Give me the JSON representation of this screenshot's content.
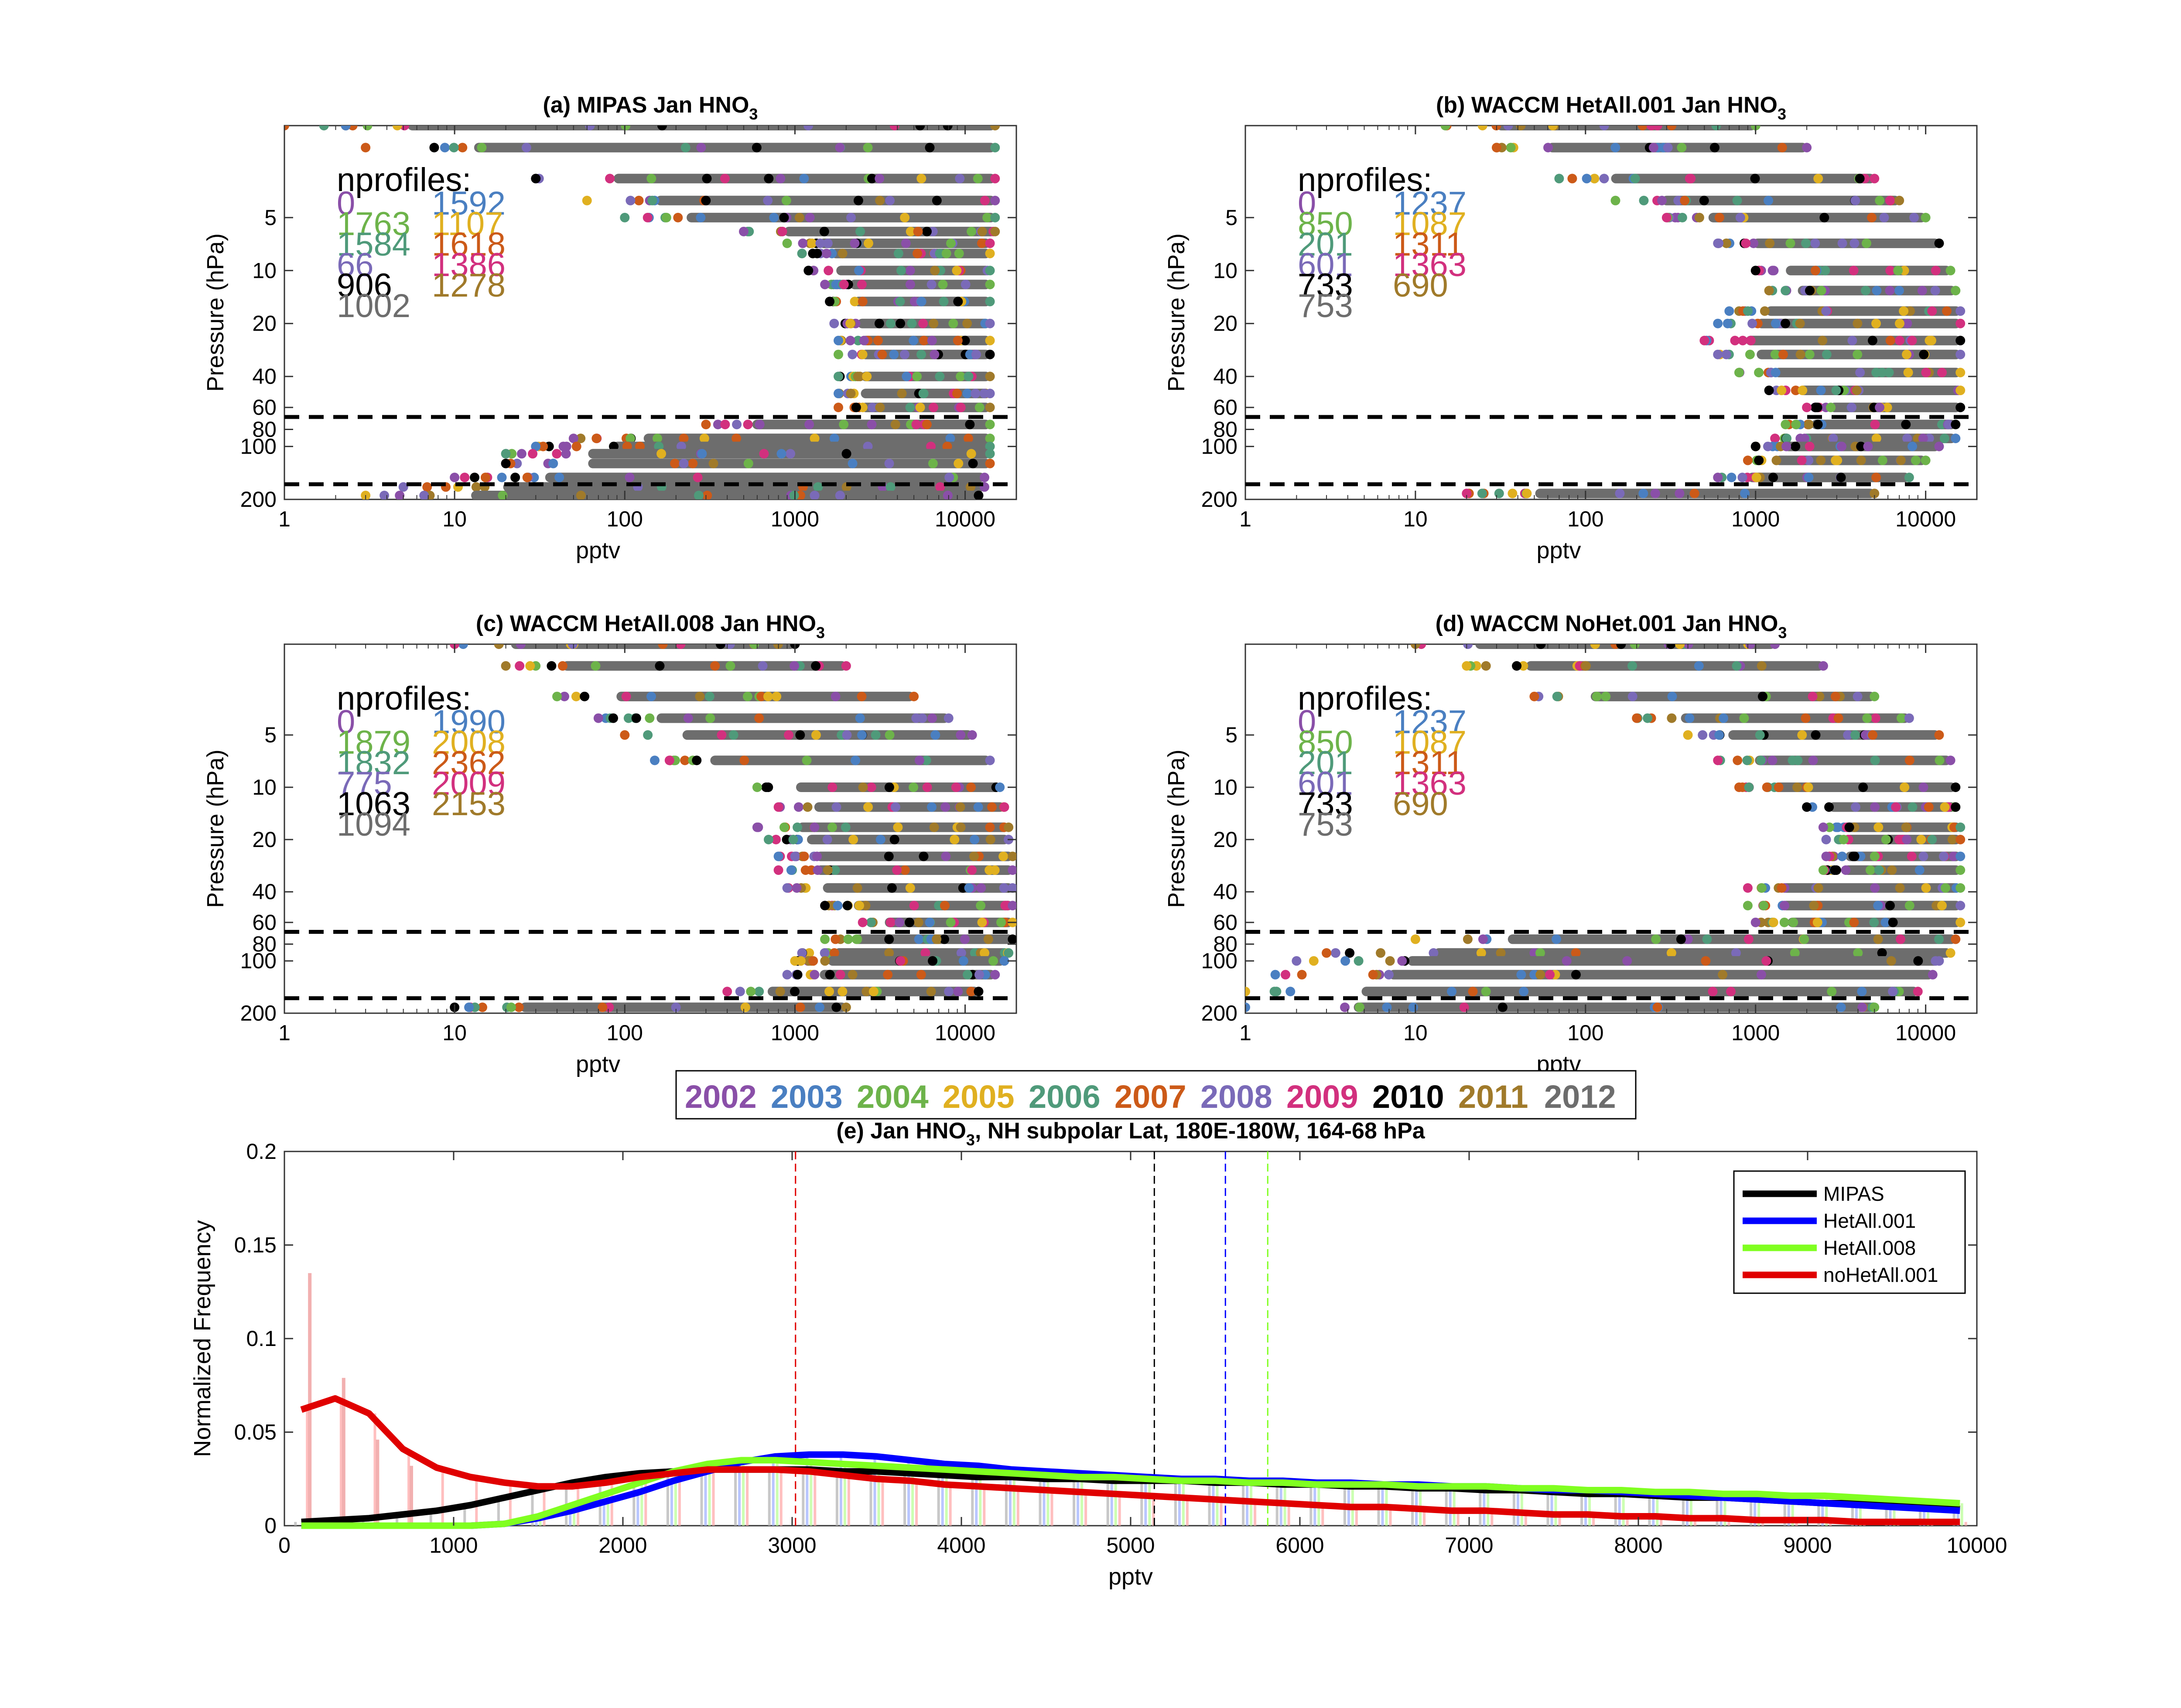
{
  "colors": {
    "2002": "#8a4fa8",
    "2003": "#4a7fc1",
    "2004": "#6db34a",
    "2005": "#e0b020",
    "2006": "#4f9a7a",
    "2007": "#cc5a18",
    "2008": "#7a6ab8",
    "2009": "#d2307e",
    "2010": "#000000",
    "2011": "#a07a2a",
    "2012": "#6d6d6d",
    "MIPAS": "#000000",
    "HetAll.001": "#0000ff",
    "HetAll.008": "#80ff20",
    "noHetAll.001": "#e00000"
  },
  "panels": [
    {
      "id": "a",
      "title_main": "(a) MIPAS Jan HNO",
      "title_sub": "3",
      "nprofiles_label": "nprofiles:",
      "counts": [
        "0",
        "1592",
        "1763",
        "1107",
        "1584",
        "1618",
        "66",
        "1386",
        "906",
        "1278",
        "1002"
      ]
    },
    {
      "id": "b",
      "title_main": "(b) WACCM HetAll.001 Jan HNO",
      "title_sub": "3",
      "nprofiles_label": "nprofiles:",
      "counts": [
        "0",
        "1237",
        "850",
        "1087",
        "201",
        "1311",
        "601",
        "1363",
        "733",
        "690",
        "753"
      ]
    },
    {
      "id": "c",
      "title_main": "(c) WACCM HetAll.008 Jan HNO",
      "title_sub": "3",
      "nprofiles_label": "nprofiles:",
      "counts": [
        "0",
        "1990",
        "1879",
        "2008",
        "1832",
        "2362",
        "775",
        "2009",
        "1063",
        "2153",
        "1094"
      ]
    },
    {
      "id": "d",
      "title_main": "(d) WACCM NoHet.001 Jan HNO",
      "title_sub": "3",
      "nprofiles_label": "nprofiles:",
      "counts": [
        "0",
        "1237",
        "850",
        "1087",
        "201",
        "1311",
        "601",
        "1363",
        "733",
        "690",
        "753"
      ]
    }
  ],
  "profile_axes": {
    "ylabel": "Pressure (hPa)",
    "xlabel": "pptv",
    "xscale": "log",
    "yscale": "log",
    "xlim": [
      1,
      20000
    ],
    "ylim": [
      1.5,
      200
    ],
    "xticks": [
      "1",
      "10",
      "100",
      "1000",
      "10000"
    ],
    "yticks": [
      "5",
      "10",
      "20",
      "40",
      "60",
      "80",
      "100",
      "200"
    ],
    "dashed_pressure_levels": [
      68,
      164
    ]
  },
  "year_legend": [
    "2002",
    "2003",
    "2004",
    "2005",
    "2006",
    "2007",
    "2008",
    "2009",
    "2010",
    "2011",
    "2012"
  ],
  "chart_data": [
    {
      "type": "scatter",
      "panel": "a",
      "description_ranges": [
        {
          "p": 1.5,
          "min": 1,
          "max": 15000
        },
        {
          "p": 2,
          "min": 3,
          "max": 15000
        },
        {
          "p": 3,
          "min": 30,
          "max": 15000
        },
        {
          "p": 4,
          "min": 60,
          "max": 15000
        },
        {
          "p": 5,
          "min": 100,
          "max": 15000
        },
        {
          "p": 6,
          "min": 500,
          "max": 15000
        },
        {
          "p": 7,
          "min": 900,
          "max": 14000
        },
        {
          "p": 8,
          "min": 1100,
          "max": 14000
        },
        {
          "p": 10,
          "min": 1200,
          "max": 14000
        },
        {
          "p": 12,
          "min": 1500,
          "max": 14000
        },
        {
          "p": 15,
          "min": 1600,
          "max": 14000
        },
        {
          "p": 20,
          "min": 1700,
          "max": 14000
        },
        {
          "p": 25,
          "min": 1800,
          "max": 14000
        },
        {
          "p": 30,
          "min": 1800,
          "max": 14000
        },
        {
          "p": 40,
          "min": 1800,
          "max": 14000
        },
        {
          "p": 50,
          "min": 1800,
          "max": 14000
        },
        {
          "p": 60,
          "min": 1800,
          "max": 14000
        },
        {
          "p": 75,
          "min": 300,
          "max": 14000
        },
        {
          "p": 90,
          "min": 50,
          "max": 14000
        },
        {
          "p": 100,
          "min": 30,
          "max": 14000
        },
        {
          "p": 110,
          "min": 20,
          "max": 14000
        },
        {
          "p": 125,
          "min": 20,
          "max": 14000
        },
        {
          "p": 150,
          "min": 10,
          "max": 13000
        },
        {
          "p": 170,
          "min": 5,
          "max": 13000
        },
        {
          "p": 190,
          "min": 3,
          "max": 12000
        }
      ]
    },
    {
      "type": "scatter",
      "panel": "b",
      "description_ranges": [
        {
          "p": 1.5,
          "min": 15,
          "max": 1000
        },
        {
          "p": 2,
          "min": 30,
          "max": 2000
        },
        {
          "p": 3,
          "min": 70,
          "max": 5000
        },
        {
          "p": 4,
          "min": 150,
          "max": 7000
        },
        {
          "p": 5,
          "min": 300,
          "max": 10000
        },
        {
          "p": 7,
          "min": 600,
          "max": 12000
        },
        {
          "p": 10,
          "min": 1000,
          "max": 14000
        },
        {
          "p": 13,
          "min": 1200,
          "max": 15000
        },
        {
          "p": 17,
          "min": 700,
          "max": 16000
        },
        {
          "p": 20,
          "min": 600,
          "max": 16000
        },
        {
          "p": 25,
          "min": 500,
          "max": 16000
        },
        {
          "p": 30,
          "min": 600,
          "max": 16000
        },
        {
          "p": 38,
          "min": 800,
          "max": 16000
        },
        {
          "p": 48,
          "min": 1200,
          "max": 16000
        },
        {
          "p": 60,
          "min": 2000,
          "max": 16000
        },
        {
          "p": 75,
          "min": 1500,
          "max": 15000
        },
        {
          "p": 90,
          "min": 1300,
          "max": 15000
        },
        {
          "p": 100,
          "min": 1000,
          "max": 12000
        },
        {
          "p": 120,
          "min": 900,
          "max": 10000
        },
        {
          "p": 150,
          "min": 600,
          "max": 8000
        },
        {
          "p": 185,
          "min": 20,
          "max": 5000
        }
      ]
    },
    {
      "type": "scatter",
      "panel": "c",
      "description_ranges": [
        {
          "p": 1.5,
          "min": 10,
          "max": 1000
        },
        {
          "p": 2,
          "min": 20,
          "max": 2000
        },
        {
          "p": 3,
          "min": 40,
          "max": 5000
        },
        {
          "p": 4,
          "min": 70,
          "max": 8000
        },
        {
          "p": 5,
          "min": 100,
          "max": 11000
        },
        {
          "p": 7,
          "min": 150,
          "max": 14000
        },
        {
          "p": 10,
          "min": 600,
          "max": 16000
        },
        {
          "p": 13,
          "min": 800,
          "max": 17000
        },
        {
          "p": 17,
          "min": 600,
          "max": 18000
        },
        {
          "p": 20,
          "min": 700,
          "max": 18000
        },
        {
          "p": 25,
          "min": 800,
          "max": 19000
        },
        {
          "p": 30,
          "min": 800,
          "max": 19000
        },
        {
          "p": 38,
          "min": 900,
          "max": 19000
        },
        {
          "p": 48,
          "min": 1500,
          "max": 19000
        },
        {
          "p": 60,
          "min": 2500,
          "max": 19000
        },
        {
          "p": 75,
          "min": 1500,
          "max": 19000
        },
        {
          "p": 90,
          "min": 1100,
          "max": 18000
        },
        {
          "p": 100,
          "min": 1000,
          "max": 17000
        },
        {
          "p": 120,
          "min": 900,
          "max": 15000
        },
        {
          "p": 150,
          "min": 400,
          "max": 12000
        },
        {
          "p": 185,
          "min": 10,
          "max": 2000
        }
      ]
    },
    {
      "type": "scatter",
      "panel": "d",
      "description_ranges": [
        {
          "p": 1.5,
          "min": 10,
          "max": 1300
        },
        {
          "p": 2,
          "min": 20,
          "max": 2500
        },
        {
          "p": 3,
          "min": 50,
          "max": 5000
        },
        {
          "p": 4,
          "min": 200,
          "max": 8000
        },
        {
          "p": 5,
          "min": 400,
          "max": 12000
        },
        {
          "p": 7,
          "min": 600,
          "max": 14000
        },
        {
          "p": 10,
          "min": 800,
          "max": 15000
        },
        {
          "p": 13,
          "min": 2000,
          "max": 15000
        },
        {
          "p": 17,
          "min": 2500,
          "max": 16000
        },
        {
          "p": 20,
          "min": 2600,
          "max": 16000
        },
        {
          "p": 25,
          "min": 2600,
          "max": 16000
        },
        {
          "p": 30,
          "min": 2500,
          "max": 16000
        },
        {
          "p": 38,
          "min": 900,
          "max": 16000
        },
        {
          "p": 48,
          "min": 900,
          "max": 16000
        },
        {
          "p": 60,
          "min": 1000,
          "max": 16000
        },
        {
          "p": 75,
          "min": 10,
          "max": 15000
        },
        {
          "p": 90,
          "min": 3,
          "max": 14000
        },
        {
          "p": 100,
          "min": 2,
          "max": 12000
        },
        {
          "p": 120,
          "min": 1.5,
          "max": 11000
        },
        {
          "p": 150,
          "min": 1,
          "max": 9000
        },
        {
          "p": 185,
          "min": 1,
          "max": 5000
        }
      ]
    },
    {
      "type": "line",
      "panel": "e",
      "title": "(e) Jan HNO3, NH subpolar Lat, 180E-180W, 164-68 hPa",
      "title_main": "(e) Jan HNO",
      "title_sub": "3",
      "title_rest": ", NH subpolar Lat, 180E-180W, 164-68 hPa",
      "xlabel": "pptv",
      "ylabel": "Normalized Frequency",
      "xlim": [
        0,
        10000
      ],
      "ylim": [
        0,
        0.2
      ],
      "xticks": [
        "0",
        "1000",
        "2000",
        "3000",
        "4000",
        "5000",
        "6000",
        "7000",
        "8000",
        "9000",
        "10000"
      ],
      "yticks": [
        "0",
        "0.05",
        "0.1",
        "0.15",
        "0.2"
      ],
      "x": [
        100,
        300,
        500,
        700,
        900,
        1100,
        1300,
        1500,
        1700,
        1900,
        2100,
        2300,
        2500,
        2700,
        2900,
        3100,
        3300,
        3500,
        3700,
        3900,
        4100,
        4300,
        4500,
        4700,
        4900,
        5100,
        5300,
        5500,
        5700,
        5900,
        6100,
        6300,
        6500,
        6700,
        6900,
        7100,
        7300,
        7500,
        7700,
        7900,
        8100,
        8300,
        8500,
        8700,
        8900,
        9100,
        9300,
        9500,
        9700,
        9900
      ],
      "series": [
        {
          "name": "MIPAS",
          "values": [
            0.002,
            0.003,
            0.004,
            0.006,
            0.008,
            0.011,
            0.015,
            0.019,
            0.023,
            0.026,
            0.028,
            0.029,
            0.03,
            0.03,
            0.03,
            0.03,
            0.029,
            0.029,
            0.028,
            0.027,
            0.026,
            0.026,
            0.025,
            0.025,
            0.024,
            0.024,
            0.024,
            0.023,
            0.023,
            0.022,
            0.022,
            0.021,
            0.021,
            0.02,
            0.02,
            0.019,
            0.019,
            0.018,
            0.017,
            0.017,
            0.016,
            0.015,
            0.015,
            0.014,
            0.013,
            0.012,
            0.012,
            0.011,
            0.01,
            0.009
          ]
        },
        {
          "name": "HetAll.001",
          "values": [
            0,
            0,
            0,
            0,
            0,
            0,
            0.001,
            0.004,
            0.008,
            0.013,
            0.018,
            0.024,
            0.029,
            0.034,
            0.037,
            0.038,
            0.038,
            0.037,
            0.035,
            0.033,
            0.032,
            0.03,
            0.029,
            0.028,
            0.027,
            0.026,
            0.025,
            0.025,
            0.024,
            0.024,
            0.023,
            0.023,
            0.022,
            0.022,
            0.021,
            0.021,
            0.02,
            0.019,
            0.019,
            0.018,
            0.017,
            0.016,
            0.015,
            0.014,
            0.013,
            0.012,
            0.011,
            0.01,
            0.009,
            0.008
          ]
        },
        {
          "name": "HetAll.008",
          "values": [
            0,
            0,
            0,
            0,
            0,
            0,
            0.001,
            0.005,
            0.011,
            0.017,
            0.023,
            0.029,
            0.033,
            0.035,
            0.035,
            0.034,
            0.033,
            0.032,
            0.031,
            0.03,
            0.029,
            0.028,
            0.027,
            0.026,
            0.026,
            0.025,
            0.024,
            0.024,
            0.023,
            0.023,
            0.022,
            0.022,
            0.022,
            0.021,
            0.021,
            0.021,
            0.02,
            0.02,
            0.019,
            0.019,
            0.018,
            0.018,
            0.017,
            0.017,
            0.016,
            0.016,
            0.015,
            0.014,
            0.013,
            0.012
          ]
        },
        {
          "name": "noHetAll.001",
          "values": [
            0.062,
            0.068,
            0.06,
            0.041,
            0.031,
            0.026,
            0.023,
            0.021,
            0.021,
            0.023,
            0.026,
            0.028,
            0.03,
            0.03,
            0.03,
            0.029,
            0.027,
            0.025,
            0.024,
            0.022,
            0.021,
            0.02,
            0.019,
            0.018,
            0.017,
            0.016,
            0.015,
            0.014,
            0.013,
            0.012,
            0.011,
            0.01,
            0.01,
            0.009,
            0.008,
            0.008,
            0.007,
            0.006,
            0.006,
            0.005,
            0.005,
            0.004,
            0.004,
            0.003,
            0.003,
            0.003,
            0.002,
            0.002,
            0.002,
            0.002
          ]
        }
      ],
      "noHet_hist_bars": {
        "x": [
          150,
          350,
          550,
          750
        ],
        "values": [
          0.135,
          0.079,
          0.046,
          0.032
        ]
      },
      "means": [
        {
          "name": "noHetAll.001",
          "x": 3020
        },
        {
          "name": "MIPAS",
          "x": 5140
        },
        {
          "name": "HetAll.001",
          "x": 5560
        },
        {
          "name": "HetAll.008",
          "x": 5810
        }
      ],
      "legend": [
        "MIPAS",
        "HetAll.001",
        "HetAll.008",
        "noHetAll.001"
      ],
      "legend_position": "top-right"
    }
  ]
}
